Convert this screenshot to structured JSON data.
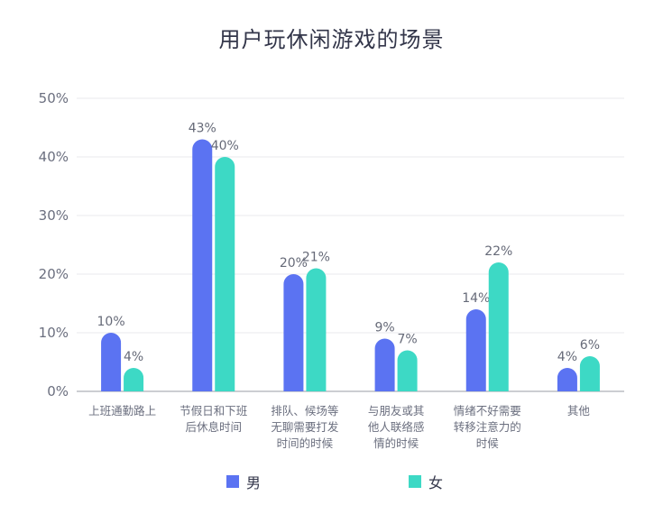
{
  "chart_data": {
    "type": "bar",
    "title": "用户玩休闲游戏的场景",
    "categories": [
      [
        "上班通勤路上"
      ],
      [
        "节假日和下班",
        "后休息时间"
      ],
      [
        "排队、候场等",
        "无聊需要打发",
        "时间的时候"
      ],
      [
        "与朋友或其",
        "他人联络感",
        "情的时候"
      ],
      [
        "情绪不好需要",
        "转移注意力的",
        "时候"
      ],
      [
        "其他"
      ]
    ],
    "series": [
      {
        "name": "男",
        "color": "#5b73f2",
        "values": [
          10,
          43,
          20,
          9,
          14,
          4
        ],
        "labels": [
          "10%",
          "43%",
          "20%",
          "9%",
          "14%",
          "4%"
        ]
      },
      {
        "name": "女",
        "color": "#3dd9c5",
        "values": [
          4,
          40,
          21,
          7,
          22,
          6
        ],
        "labels": [
          "4%",
          "40%",
          "21%",
          "7%",
          "22%",
          "6%"
        ]
      }
    ],
    "ylim": [
      0,
      50
    ],
    "yticks": [
      "0%",
      "10%",
      "20%",
      "30%",
      "40%",
      "50%"
    ],
    "ytick_values": [
      0,
      10,
      20,
      30,
      40,
      50
    ],
    "grid": true,
    "legend_position": "bottom"
  }
}
